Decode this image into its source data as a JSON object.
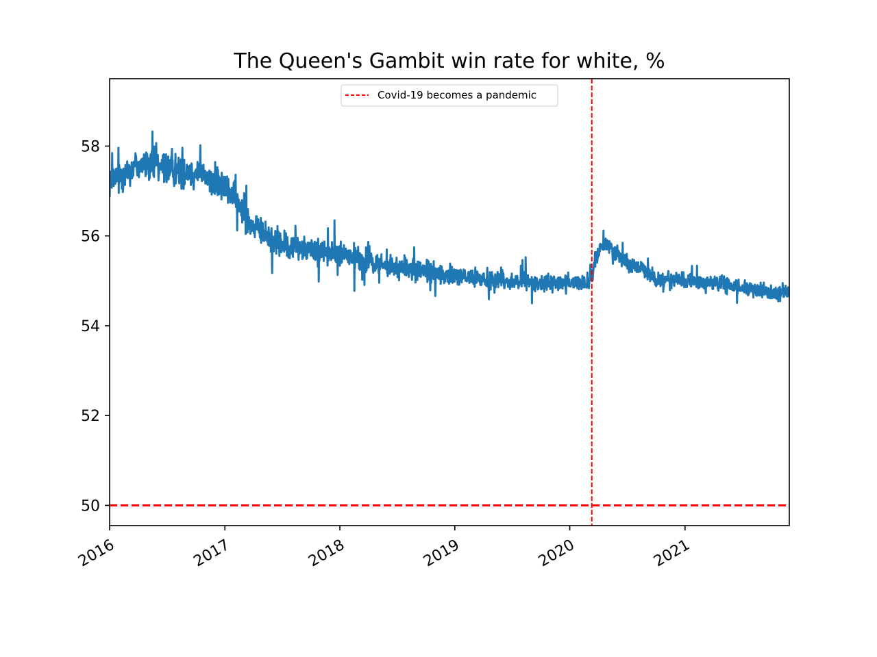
{
  "chart_data": {
    "type": "line",
    "title": "The Queen's Gambit win rate for white, %",
    "xlabel": "",
    "ylabel": "",
    "x_range": [
      "2016-01-01",
      "2021-11-28"
    ],
    "ylim": [
      49.55,
      59.5
    ],
    "yticks": [
      50,
      52,
      54,
      56,
      58
    ],
    "xticks": [
      {
        "date": "2016-01-01",
        "label": "2016"
      },
      {
        "date": "2017-01-01",
        "label": "2017"
      },
      {
        "date": "2018-01-01",
        "label": "2018"
      },
      {
        "date": "2019-01-01",
        "label": "2019"
      },
      {
        "date": "2020-01-01",
        "label": "2020"
      },
      {
        "date": "2021-01-01",
        "label": "2021"
      }
    ],
    "grid": false,
    "legend_position": "upper center",
    "series": [
      {
        "color": "#1f77b4",
        "style": "noisy-daily",
        "points": [
          [
            "2016-01-01",
            57.2
          ],
          [
            "2016-04-01",
            57.6
          ],
          [
            "2016-07-01",
            57.5
          ],
          [
            "2016-10-01",
            57.4
          ],
          [
            "2017-01-01",
            57.1
          ],
          [
            "2017-02-15",
            56.7
          ],
          [
            "2017-04-01",
            56.2
          ],
          [
            "2017-07-01",
            55.8
          ],
          [
            "2017-10-01",
            55.7
          ],
          [
            "2018-01-01",
            55.6
          ],
          [
            "2018-04-01",
            55.4
          ],
          [
            "2018-07-01",
            55.3
          ],
          [
            "2018-10-01",
            55.2
          ],
          [
            "2019-01-01",
            55.1
          ],
          [
            "2019-04-01",
            55.05
          ],
          [
            "2019-07-01",
            55.0
          ],
          [
            "2019-10-01",
            54.95
          ],
          [
            "2020-01-01",
            54.95
          ],
          [
            "2020-03-10",
            55.0
          ],
          [
            "2020-03-25",
            55.5
          ],
          [
            "2020-04-15",
            55.85
          ],
          [
            "2020-05-15",
            55.7
          ],
          [
            "2020-07-01",
            55.4
          ],
          [
            "2020-09-01",
            55.2
          ],
          [
            "2020-10-01",
            55.05
          ],
          [
            "2021-01-01",
            55.0
          ],
          [
            "2021-04-01",
            54.95
          ],
          [
            "2021-07-01",
            54.85
          ],
          [
            "2021-09-01",
            54.75
          ],
          [
            "2021-11-28",
            54.75
          ]
        ]
      }
    ],
    "reference_lines": [
      {
        "orientation": "horizontal",
        "value": 50,
        "color": "#ff0000",
        "style": "dashed"
      },
      {
        "orientation": "vertical",
        "value": "2020-03-11",
        "color": "#ff0000",
        "style": "dashed",
        "label": "Covid-19 becomes a pandemic"
      }
    ],
    "legend": [
      {
        "label": "Covid-19 becomes a pandemic",
        "color": "#ff0000",
        "style": "dashed"
      }
    ]
  }
}
